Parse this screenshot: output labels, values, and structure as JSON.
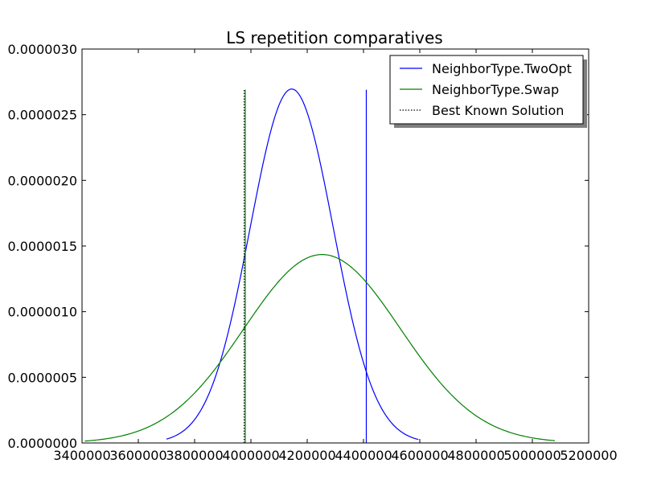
{
  "chart_data": {
    "type": "line",
    "title": "LS repetition comparatives",
    "xlabel": "",
    "ylabel": "",
    "xlim": [
      3400000,
      5200000
    ],
    "ylim": [
      0,
      3e-06
    ],
    "xticks": [
      3400000,
      3600000,
      3800000,
      4000000,
      4200000,
      4400000,
      4600000,
      4800000,
      5000000,
      5200000
    ],
    "xtick_labels": [
      "3400000",
      "3600000",
      "3800000",
      "4000000",
      "4200000",
      "4400000",
      "4600000",
      "4800000",
      "5000000",
      "5200000"
    ],
    "yticks": [
      0,
      5e-07,
      1e-06,
      1.5e-06,
      2e-06,
      2.5e-06,
      3e-06
    ],
    "ytick_labels": [
      "0.0000000",
      "0.0000005",
      "0.0000010",
      "0.0000015",
      "0.0000020",
      "0.0000025",
      "0.0000030"
    ],
    "legend_position": "top-right",
    "series": [
      {
        "name": "NeighborType.TwoOpt",
        "color": "#0000ff",
        "style": "solid",
        "kind": "normal-curve",
        "mean": 4145000,
        "sd": 148000,
        "x_range": [
          3700000,
          4595000
        ],
        "vline_x": 4410000
      },
      {
        "name": "NeighborType.Swap",
        "color": "#008000",
        "style": "solid",
        "kind": "normal-curve",
        "mean": 4253000,
        "sd": 278000,
        "x_range": [
          3410000,
          5080000
        ],
        "vline_x": 3980000
      },
      {
        "name": "Best Known Solution",
        "color": "#000000",
        "style": "dotted",
        "kind": "vline",
        "vline_x": 3976000
      }
    ],
    "vline_top": 2.69e-06
  }
}
